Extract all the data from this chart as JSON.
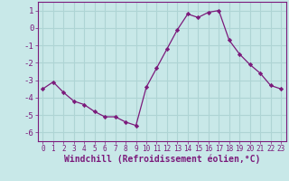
{
  "x": [
    0,
    1,
    2,
    3,
    4,
    5,
    6,
    7,
    8,
    9,
    10,
    11,
    12,
    13,
    14,
    15,
    16,
    17,
    18,
    19,
    20,
    21,
    22,
    23
  ],
  "y": [
    -3.5,
    -3.1,
    -3.7,
    -4.2,
    -4.4,
    -4.8,
    -5.1,
    -5.1,
    -5.4,
    -5.6,
    -3.4,
    -2.3,
    -1.2,
    -0.1,
    0.8,
    0.6,
    0.9,
    1.0,
    -0.7,
    -1.5,
    -2.1,
    -2.6,
    -3.3,
    -3.5
  ],
  "line_color": "#7b1a7b",
  "marker": "D",
  "marker_size": 2.2,
  "bg_color": "#c8e8e8",
  "grid_color": "#aed4d4",
  "xlim": [
    -0.5,
    23.5
  ],
  "ylim": [
    -6.5,
    1.5
  ],
  "yticks": [
    1,
    0,
    -1,
    -2,
    -3,
    -4,
    -5,
    -6
  ],
  "xtick_labels": [
    "0",
    "1",
    "2",
    "3",
    "4",
    "5",
    "6",
    "7",
    "8",
    "9",
    "10",
    "11",
    "12",
    "13",
    "14",
    "15",
    "16",
    "17",
    "18",
    "19",
    "20",
    "21",
    "22",
    "23"
  ],
  "xlabel": "Windchill (Refroidissement éolien,°C)",
  "tick_color": "#7b1a7b",
  "label_color": "#7b1a7b",
  "axis_color": "#7b1a7b",
  "xlabel_fontsize": 7.0,
  "ytick_fontsize": 6.5,
  "xtick_fontsize": 5.5
}
